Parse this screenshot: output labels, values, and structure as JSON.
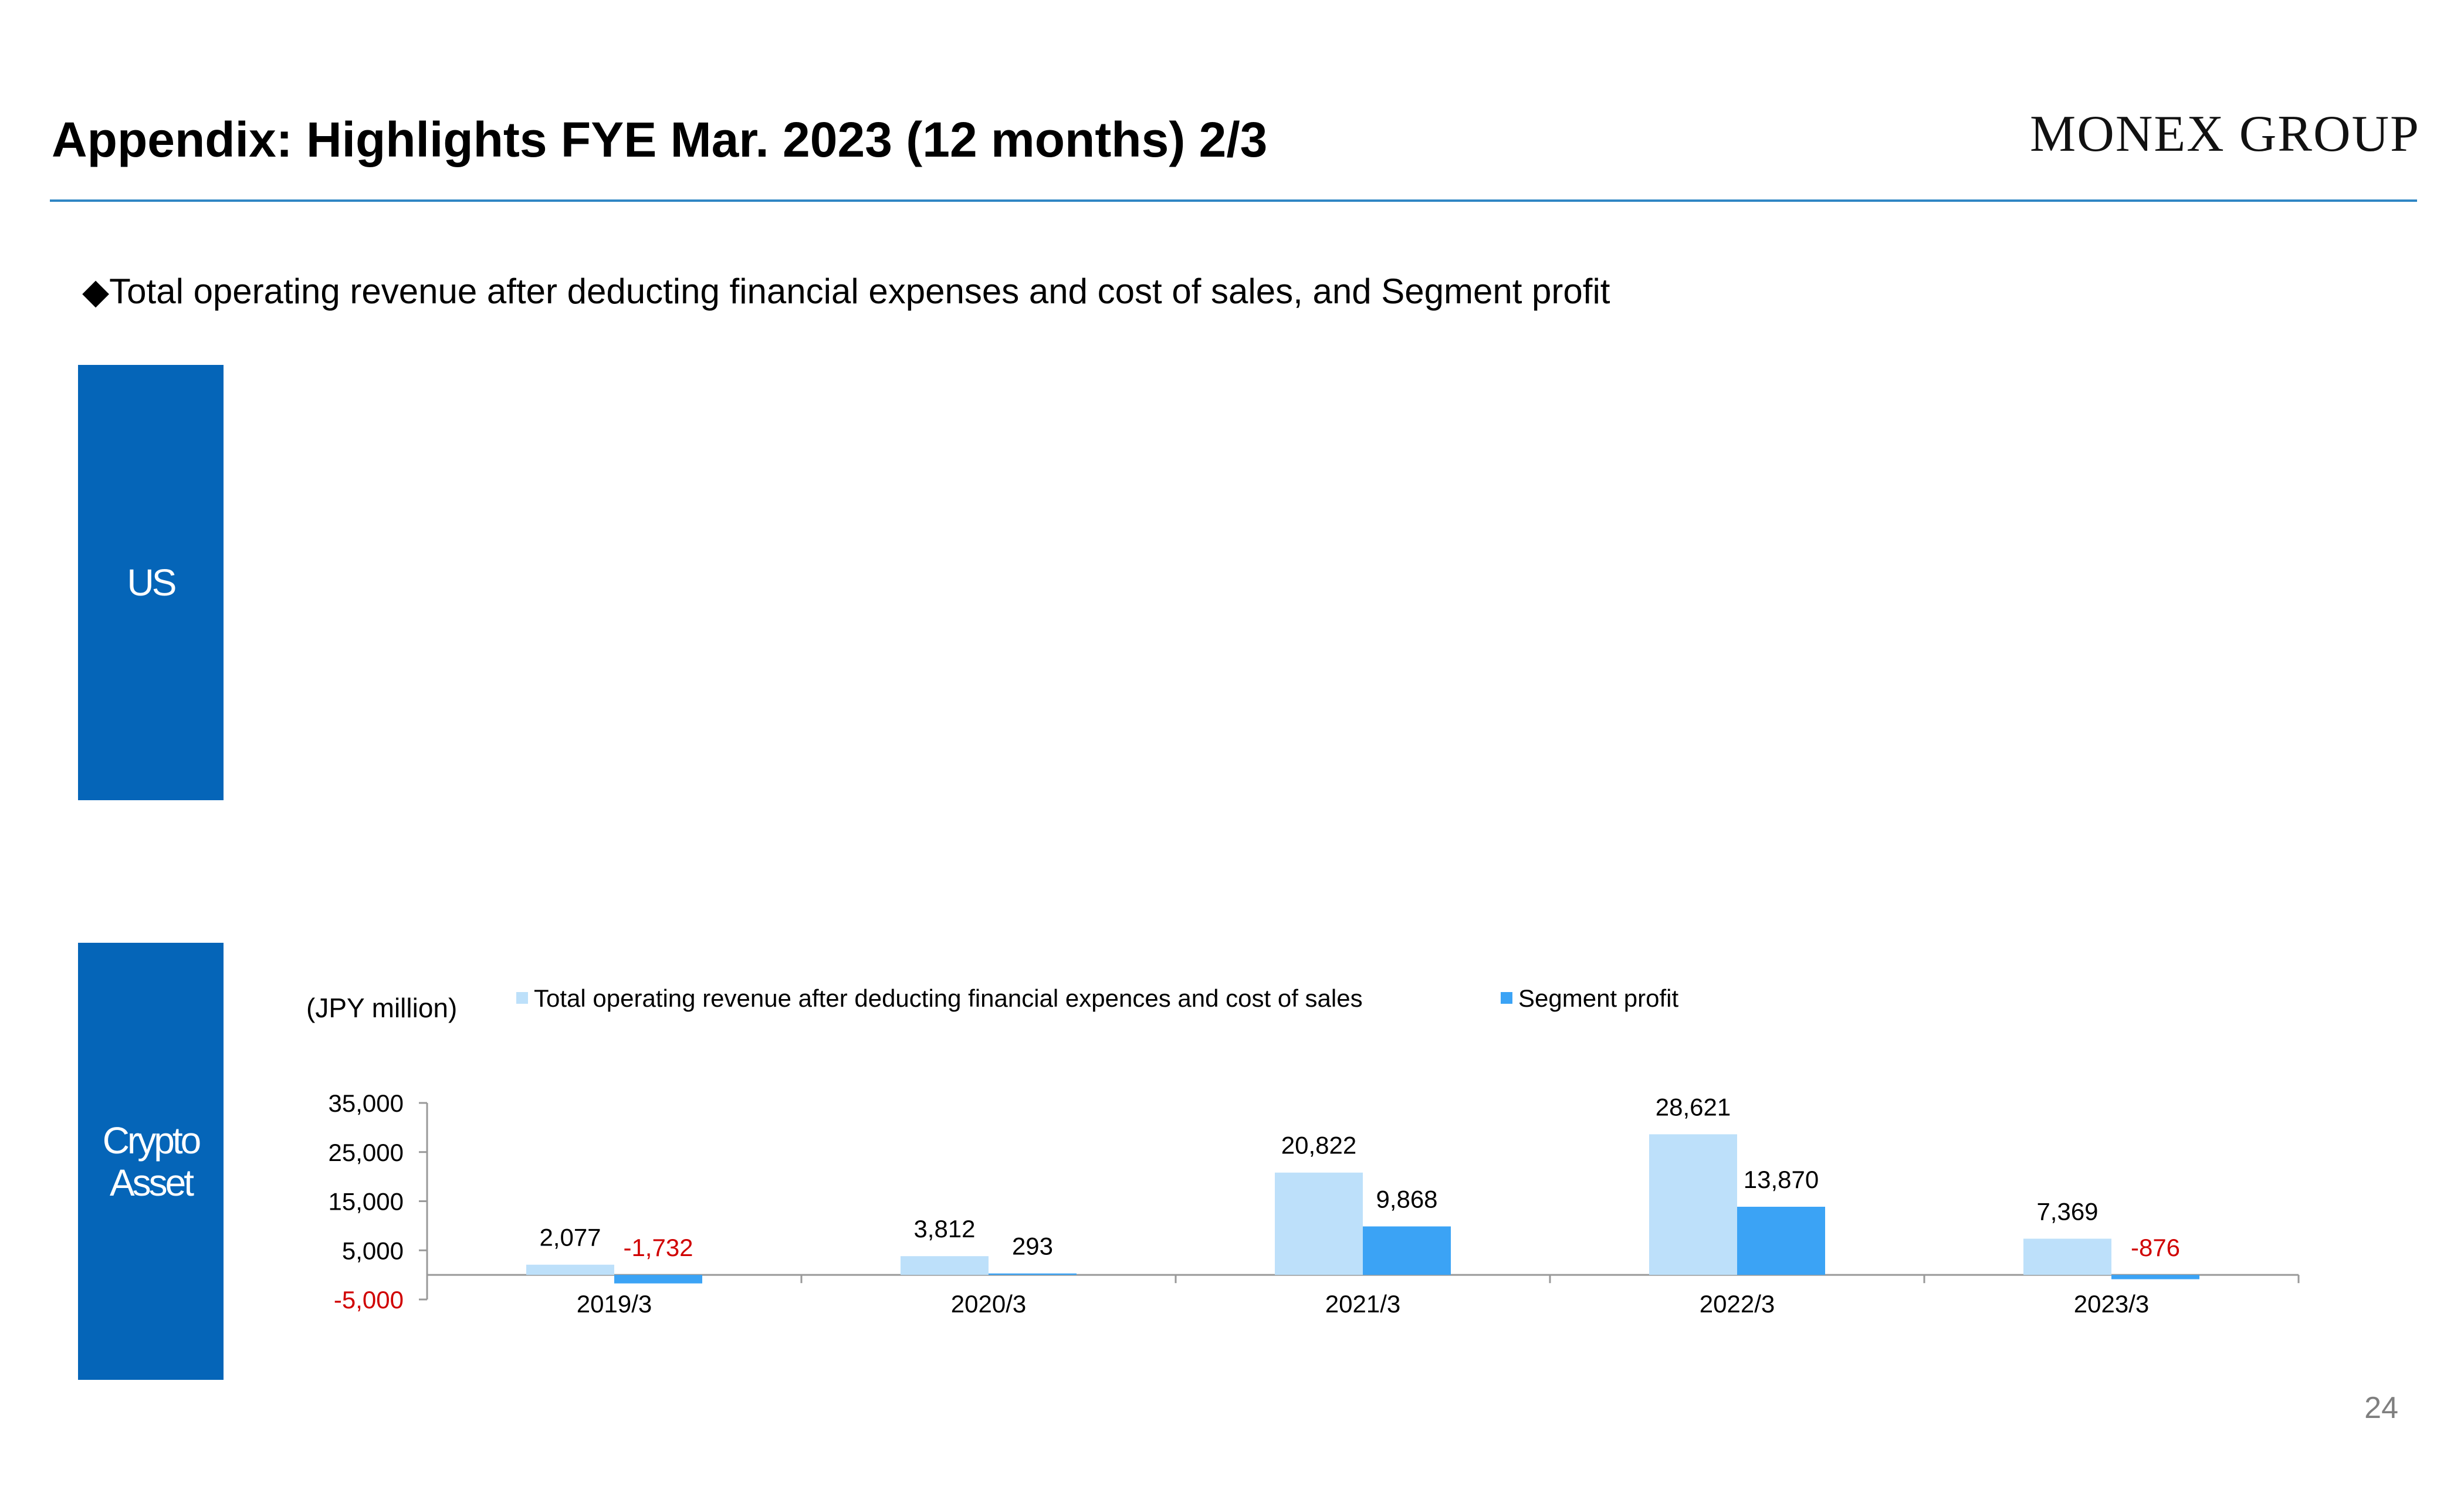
{
  "header": {
    "title": "Appendix: Highlights FYE Mar. 2023 (12 months) 2/3",
    "logo": "MONEX GROUP"
  },
  "subtitle": {
    "bullet": "◆",
    "text": "Total operating revenue after deducting financial expenses and cost of sales, and Segment profit"
  },
  "segments": {
    "us_label": "US",
    "crypto_label": "Crypto\nAsset"
  },
  "page_number": "24",
  "colors": {
    "brand_blue": "#0565b8",
    "revenue_bar": "#bde0fa",
    "profit_bar": "#3ba3f5",
    "negative_label": "#d00000",
    "rule": "#2f86c4"
  },
  "chart_data": {
    "type": "bar",
    "unit_label": "(JPY million)",
    "categories": [
      "2019/3",
      "2020/3",
      "2021/3",
      "2022/3",
      "2023/3"
    ],
    "series": [
      {
        "name": "Total operating revenue after deducting financial expences and cost of sales",
        "values": [
          2077,
          3812,
          20822,
          28621,
          7369
        ],
        "labels": [
          "2,077",
          "3,812",
          "20,822",
          "28,621",
          "7,369"
        ],
        "color": "#bde0fa"
      },
      {
        "name": "Segment profit",
        "values": [
          -1732,
          293,
          9868,
          13870,
          -876
        ],
        "labels": [
          "-1,732",
          "293",
          "9,868",
          "13,870",
          "-876"
        ],
        "color": "#3ba3f5"
      }
    ],
    "y_ticks": [
      35000,
      25000,
      15000,
      5000,
      -5000
    ],
    "y_tick_labels": [
      "35,000",
      "25,000",
      "15,000",
      "5,000",
      "-5,000"
    ],
    "ylim": [
      -5000,
      35000
    ],
    "grid": false,
    "legend": "top"
  }
}
